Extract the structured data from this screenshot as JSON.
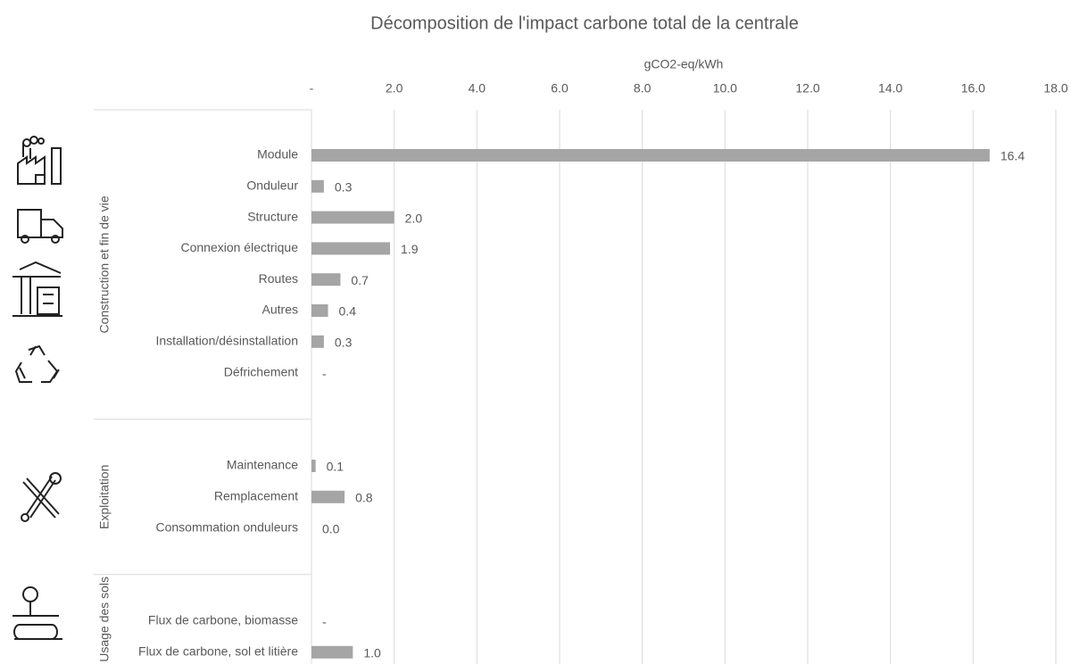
{
  "chart_data": {
    "type": "bar",
    "horizontal": true,
    "title": "Décomposition de l'impact carbone total de la centrale",
    "xlabel": "gCO2-eq/kWh",
    "color": "#a5a5a5",
    "grid": true,
    "xlim": [
      0,
      18
    ],
    "xticks": [
      {
        "value": 0,
        "label": "-"
      },
      {
        "value": 2,
        "label": "2.0"
      },
      {
        "value": 4,
        "label": "4.0"
      },
      {
        "value": 6,
        "label": "6.0"
      },
      {
        "value": 8,
        "label": "8.0"
      },
      {
        "value": 10,
        "label": "10.0"
      },
      {
        "value": 12,
        "label": "12.0"
      },
      {
        "value": 14,
        "label": "14.0"
      },
      {
        "value": 16,
        "label": "16.0"
      },
      {
        "value": 18,
        "label": "18.0"
      }
    ],
    "groups": [
      {
        "name": "Construction et fin de vie",
        "categories": [
          "Module",
          "Onduleur",
          "Structure",
          "Connexion électrique",
          "Routes",
          "Autres",
          "Installation/désinstallation",
          "Défrichement"
        ],
        "values": [
          16.4,
          0.3,
          2.0,
          1.9,
          0.7,
          0.4,
          0.3,
          0
        ],
        "value_labels": [
          "16.4",
          "0.3",
          "2.0",
          "1.9",
          "0.7",
          "0.4",
          "0.3",
          "-"
        ]
      },
      {
        "name": "Exploitation",
        "categories": [
          "Maintenance",
          "Remplacement",
          "Consommation onduleurs"
        ],
        "values": [
          0.1,
          0.8,
          0
        ],
        "value_labels": [
          "0.1",
          "0.8",
          "0.0"
        ]
      },
      {
        "name": "Usage des sols",
        "categories": [
          "Flux de carbone, biomasse",
          "Flux de carbone, sol et litière"
        ],
        "values": [
          0,
          1.0
        ],
        "value_labels": [
          "-",
          "1.0"
        ]
      }
    ]
  }
}
